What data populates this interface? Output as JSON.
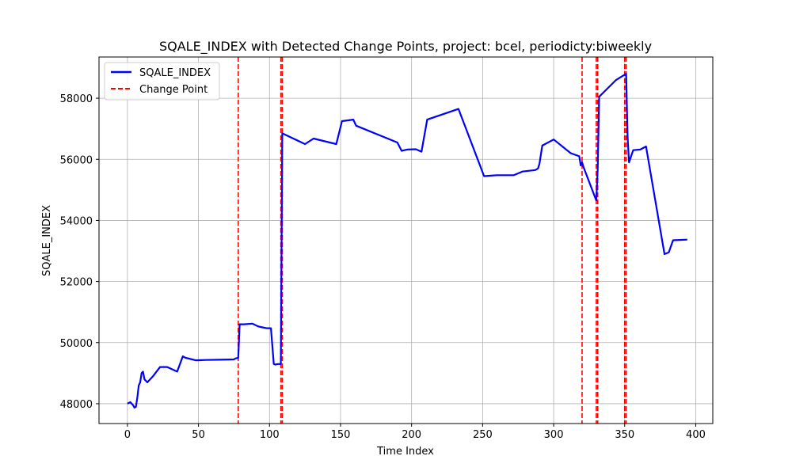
{
  "chart_data": {
    "type": "line",
    "title": "SQALE_INDEX with Detected Change Points, project: bcel, periodicty:biweekly",
    "xlabel": "Time Index",
    "ylabel": "SQALE_INDEX",
    "xlim": [
      -20,
      412
    ],
    "ylim": [
      47350,
      59350
    ],
    "xticks": [
      0,
      50,
      100,
      150,
      200,
      250,
      300,
      350,
      400
    ],
    "yticks": [
      48000,
      50000,
      52000,
      54000,
      56000,
      58000
    ],
    "grid": true,
    "legend_position": "top-left",
    "series": [
      {
        "name": "SQALE_INDEX",
        "color": "#0000ff",
        "x": [
          0,
          2,
          4,
          5,
          6,
          7,
          8,
          9,
          10,
          11,
          12,
          14,
          18,
          23,
          28,
          35,
          39,
          41,
          48,
          55,
          65,
          75,
          76,
          78,
          79,
          82,
          88,
          92,
          95,
          98,
          101,
          103,
          104,
          106,
          108,
          109,
          110,
          125,
          131,
          147,
          151,
          159,
          161,
          190,
          193,
          195,
          197,
          203,
          207,
          211,
          233,
          251,
          260,
          272,
          278,
          287,
          289,
          290,
          292,
          300,
          312,
          318,
          319,
          320,
          321,
          330,
          331,
          332,
          344,
          351,
          352,
          353,
          356,
          361,
          365,
          378,
          381,
          384,
          394
        ],
        "y": [
          48000,
          48050,
          47950,
          47870,
          47900,
          48200,
          48600,
          48700,
          49000,
          49050,
          48800,
          48700,
          48900,
          49200,
          49200,
          49050,
          49550,
          49500,
          49420,
          49430,
          49440,
          49450,
          49480,
          49500,
          50600,
          50600,
          50620,
          50530,
          50500,
          50470,
          50470,
          49300,
          49280,
          49300,
          49300,
          56850,
          56830,
          56500,
          56680,
          56500,
          57250,
          57300,
          57100,
          56550,
          56280,
          56300,
          56320,
          56330,
          56250,
          57300,
          57650,
          55450,
          55480,
          55480,
          55600,
          55650,
          55700,
          55850,
          56450,
          56650,
          56200,
          56100,
          55800,
          55900,
          55750,
          54650,
          55700,
          58050,
          58600,
          58800,
          56750,
          55900,
          56300,
          56320,
          56420,
          52900,
          52950,
          53350,
          53370
        ]
      },
      {
        "name": "Change Point",
        "color": "#ff0000",
        "style": "dashed",
        "x": [
          78,
          108,
          109,
          320,
          330,
          331,
          350,
          351
        ]
      }
    ]
  }
}
